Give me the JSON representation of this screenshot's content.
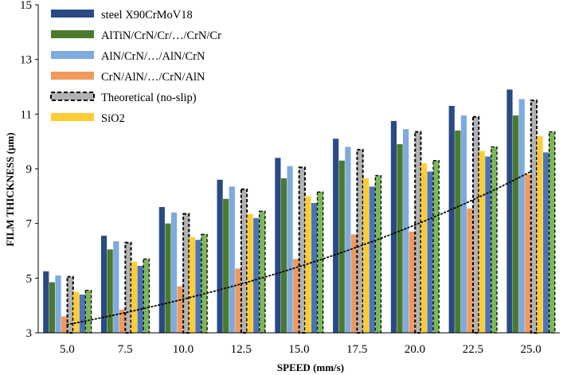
{
  "chart_data": {
    "type": "bar",
    "title": "",
    "xlabel": "SPEED (mm/s)",
    "ylabel": "FILM THICKNESS (µm)",
    "ylim": [
      3,
      15
    ],
    "yticks": [
      "3",
      "5",
      "7",
      "9",
      "11",
      "13",
      "15"
    ],
    "categories": [
      "5.0",
      "7.5",
      "10.0",
      "12.5",
      "15.0",
      "17.5",
      "20.0",
      "22.5",
      "25.0"
    ],
    "series": [
      {
        "name": "steel X90CrMoV18",
        "color": "#2a4a85",
        "style": "solid",
        "values": [
          5.25,
          6.55,
          7.6,
          8.6,
          9.4,
          10.1,
          10.75,
          11.3,
          11.9
        ]
      },
      {
        "name": "AlTiN/CrN/Cr/…/CrN/Cr",
        "color": "#4a7a2c",
        "style": "solid",
        "values": [
          4.85,
          6.05,
          7.0,
          7.9,
          8.65,
          9.3,
          9.9,
          10.4,
          10.95
        ]
      },
      {
        "name": "AlN/CrN/…/AlN/CrN",
        "color": "#7eaadf",
        "style": "solid",
        "values": [
          5.1,
          6.35,
          7.4,
          8.35,
          9.1,
          9.8,
          10.45,
          10.95,
          11.55
        ]
      },
      {
        "name": "CrN/AlN/…/CrN/AlN",
        "color": "#f09a5c",
        "style": "solid",
        "values": [
          3.6,
          3.85,
          4.7,
          5.35,
          5.7,
          6.6,
          6.7,
          7.55,
          8.8
        ]
      },
      {
        "name": "Theoretical (no-slip)",
        "color": "#bdbdbd",
        "style": "dashed",
        "values": [
          5.05,
          6.3,
          7.35,
          8.25,
          9.05,
          9.7,
          10.35,
          10.9,
          11.5
        ]
      },
      {
        "name": "SiO2",
        "color": "#ffcc33",
        "style": "solid",
        "values": [
          4.5,
          5.6,
          6.5,
          7.35,
          8.0,
          8.65,
          9.2,
          9.65,
          10.2
        ]
      },
      {
        "name": "",
        "color": "#4a74b8",
        "style": "solid",
        "values": [
          4.4,
          5.45,
          6.4,
          7.2,
          7.75,
          8.35,
          8.9,
          9.45,
          9.6
        ]
      },
      {
        "name": "",
        "color": "#8fc66d",
        "style": "dashed",
        "values": [
          4.55,
          5.7,
          6.6,
          7.45,
          8.15,
          8.75,
          9.3,
          9.8,
          10.35
        ]
      }
    ],
    "trendline": {
      "type": "exponential",
      "style": "dotted",
      "color": "#000000",
      "x": [
        5.0,
        25.0
      ],
      "y": [
        3.3,
        8.9
      ]
    },
    "legend": {
      "position": "top-left"
    },
    "grid": false
  }
}
